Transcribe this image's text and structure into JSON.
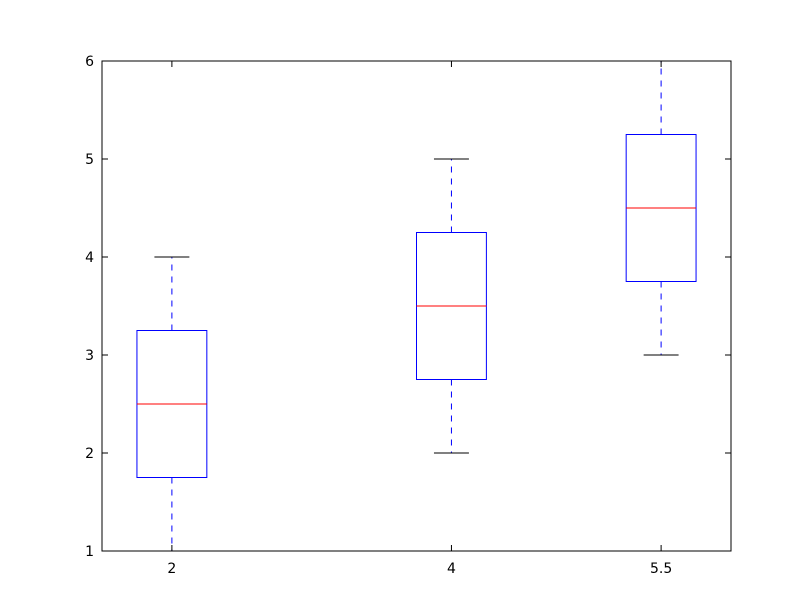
{
  "chart_data": {
    "type": "box",
    "title": "",
    "xlabel": "",
    "ylabel": "",
    "xlim": [
      1.5,
      6.0
    ],
    "ylim": [
      1,
      6
    ],
    "grid": false,
    "x_ticks": [
      "2",
      "4",
      "5.5"
    ],
    "y_ticks": [
      "1",
      "2",
      "3",
      "4",
      "5",
      "6"
    ],
    "boxes": [
      {
        "position": 2,
        "whisker_low": 1,
        "q1": 1.75,
        "median": 2.5,
        "q3": 3.25,
        "whisker_high": 4
      },
      {
        "position": 4,
        "whisker_low": 2,
        "q1": 2.75,
        "median": 3.5,
        "q3": 4.25,
        "whisker_high": 5
      },
      {
        "position": 5.5,
        "whisker_low": 3,
        "q1": 3.75,
        "median": 4.5,
        "q3": 5.25,
        "whisker_high": 6
      }
    ],
    "box_width": 0.5,
    "colors": {
      "box": "#0000ff",
      "median": "#ff0000",
      "whisker": "#0000ff",
      "cap": "#000000"
    }
  }
}
